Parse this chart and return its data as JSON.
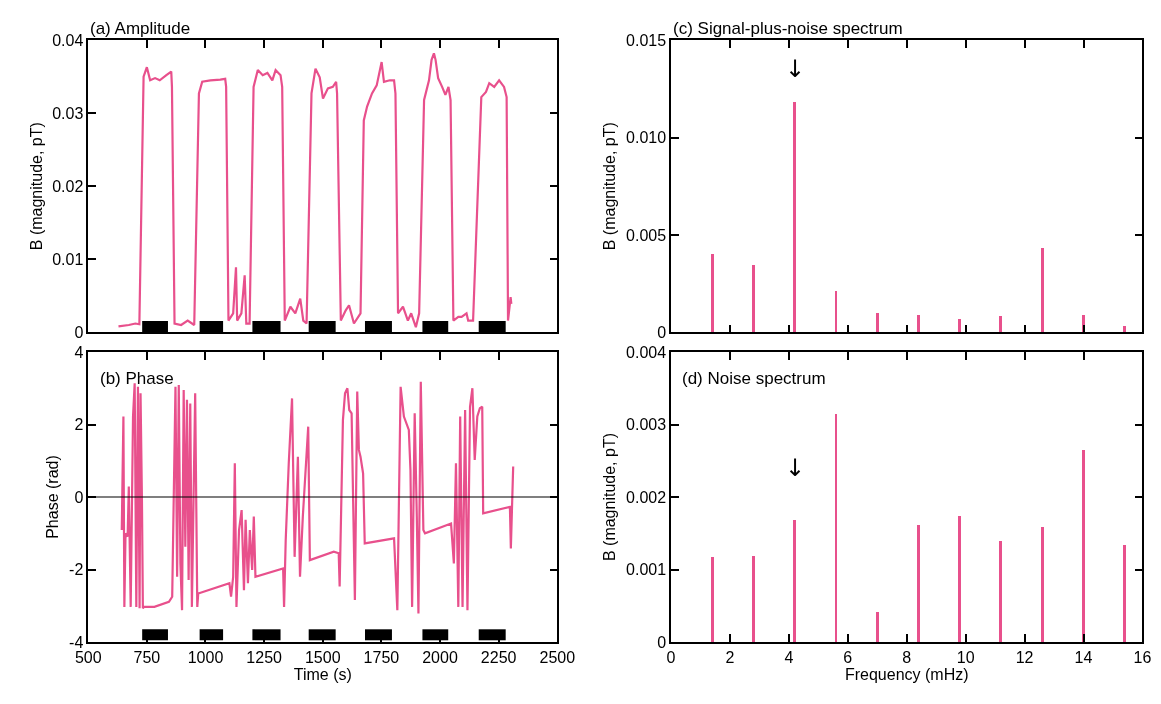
{
  "chart_data": [
    {
      "type": "line",
      "title": "(a) Amplitude",
      "ylabel": "B (magnitude, pT)",
      "tick_labels": "y",
      "marker": "none",
      "line_style": "solid",
      "xlim": [
        500,
        2500
      ],
      "xticks": [
        500,
        750,
        1000,
        1250,
        1500,
        1750,
        2000,
        2250,
        2500
      ],
      "ylim": [
        0,
        0.04
      ],
      "yticks": [
        0,
        0.01,
        0.02,
        0.03,
        0.04
      ],
      "series": [
        {
          "color": "#000000",
          "x": [
            730,
            840,
            null,
            975,
            1075,
            null,
            1200,
            1320,
            null,
            1440,
            1555,
            null,
            1680,
            1795,
            null,
            1925,
            2035,
            null,
            2165,
            2280
          ],
          "values": [
            0.0008,
            0.0008,
            null,
            0.0008,
            0.0008,
            null,
            0.0008,
            0.0008,
            null,
            0.0008,
            0.0008,
            null,
            0.0008,
            0.0008,
            null,
            0.0008,
            0.0008,
            null,
            0.0008,
            0.0008
          ]
        },
        {
          "color": "#e8508c",
          "x": [
            629,
            673,
            701,
            718,
            736,
            750,
            764,
            785,
            805,
            833,
            854,
            857,
            868,
            896,
            924,
            952,
            972,
            986,
            1021,
            1063,
            1084,
            1088,
            1098,
            1118,
            1130,
            1135,
            1153,
            1167,
            1174,
            1188,
            1205,
            1223,
            1244,
            1264,
            1285,
            1299,
            1320,
            1327,
            1338,
            1362,
            1383,
            1404,
            1417,
            1431,
            1452,
            1469,
            1487,
            1501,
            1522,
            1543,
            1557,
            1561,
            1577,
            1598,
            1612,
            1633,
            1661,
            1675,
            1689,
            1710,
            1730,
            1751,
            1761,
            1786,
            1804,
            1810,
            1821,
            1842,
            1863,
            1877,
            1897,
            1911,
            1932,
            1953,
            1964,
            1974,
            1981,
            1992,
            2009,
            2023,
            2036,
            2045,
            2057,
            2078,
            2092,
            2113,
            2120,
            2141,
            2176,
            2196,
            2210,
            2231,
            2252,
            2273,
            2284,
            2290,
            2301,
            2304
          ],
          "values": [
            0.0008,
            0.001,
            0.0012,
            0.0011,
            0.035,
            0.0363,
            0.0345,
            0.0348,
            0.0345,
            0.0352,
            0.0357,
            0.0336,
            0.0012,
            0.001,
            0.0016,
            0.001,
            0.0327,
            0.0343,
            0.0345,
            0.0346,
            0.0347,
            0.0336,
            0.0016,
            0.0026,
            0.0089,
            0.0016,
            0.0026,
            0.0078,
            0.0012,
            0.0012,
            0.0336,
            0.0359,
            0.0352,
            0.0355,
            0.0345,
            0.0359,
            0.0352,
            0.0336,
            0.0016,
            0.0035,
            0.0026,
            0.0046,
            0.0016,
            0.0012,
            0.0327,
            0.0361,
            0.0349,
            0.032,
            0.0334,
            0.0336,
            0.0343,
            0.0327,
            0.0016,
            0.003,
            0.0037,
            0.0012,
            0.0026,
            0.029,
            0.0309,
            0.0327,
            0.0338,
            0.037,
            0.0343,
            0.0345,
            0.0345,
            0.0327,
            0.0026,
            0.0035,
            0.0016,
            0.0026,
            0.0007,
            0.0026,
            0.0318,
            0.0345,
            0.0373,
            0.0382,
            0.0373,
            0.0348,
            0.0336,
            0.0325,
            0.0336,
            0.0318,
            0.0016,
            0.0021,
            0.0021,
            0.0026,
            0.0016,
            0.0016,
            0.0322,
            0.0329,
            0.0341,
            0.0336,
            0.0345,
            0.0336,
            0.0322,
            0.0016,
            0.0048,
            0.0039
          ]
        }
      ]
    },
    {
      "type": "line",
      "title": "(b) Phase",
      "xlabel": "Time (s)",
      "ylabel": "Phase (rad)",
      "marker": "none",
      "line_style": "solid",
      "xlim": [
        500,
        2500
      ],
      "xticks": [
        500,
        750,
        1000,
        1250,
        1500,
        1750,
        2000,
        2250,
        2500
      ],
      "ylim": [
        -4,
        4
      ],
      "yticks": [
        -4,
        -2,
        0,
        2,
        4
      ],
      "ref_lines": [
        {
          "axis": "y",
          "value": 0,
          "color": "#000000"
        }
      ],
      "series": [
        {
          "color": "#000000",
          "x": [
            730,
            840,
            null,
            975,
            1075,
            null,
            1200,
            1320,
            null,
            1440,
            1555,
            null,
            1680,
            1795,
            null,
            1925,
            2035,
            null,
            2165,
            2280
          ],
          "values": [
            -3.8,
            -3.8,
            null,
            -3.8,
            -3.8,
            null,
            -3.8,
            -3.8,
            null,
            -3.8,
            -3.8,
            null,
            -3.8,
            -3.8,
            null,
            -3.8,
            -3.8,
            null,
            -3.8,
            -3.8
          ]
        },
        {
          "color": "#e8508c",
          "x": [
            643,
            650,
            654,
            659,
            668,
            673,
            681,
            691,
            698,
            705,
            712,
            719,
            723,
            729,
            733,
            737,
            782,
            844,
            858,
            872,
            879,
            886,
            893,
            900,
            907,
            914,
            921,
            928,
            935,
            942,
            956,
            965,
            969,
            1102,
            1109,
            1118,
            1125,
            1132,
            1143,
            1154,
            1164,
            1171,
            1181,
            1189,
            1199,
            1206,
            1213,
            1331,
            1335,
            1342,
            1355,
            1369,
            1380,
            1394,
            1403,
            1415,
            1438,
            1445,
            1547,
            1568,
            1572,
            1586,
            1595,
            1605,
            1613,
            1623,
            1637,
            1647,
            1654,
            1661,
            1672,
            1679,
            1804,
            1818,
            1832,
            1846,
            1867,
            1874,
            1881,
            1892,
            1901,
            1908,
            1918,
            1929,
            1936,
            2047,
            2059,
            2068,
            2078,
            2086,
            2096,
            2107,
            2117,
            2128,
            2138,
            2148,
            2159,
            2170,
            2180,
            2184,
            2298,
            2302,
            2312
          ],
          "values": [
            -0.91,
            2.22,
            -3.03,
            -1.0,
            -1.09,
            0.29,
            -3.03,
            2.22,
            3.14,
            -3.03,
            3.04,
            -3.07,
            2.86,
            -0.08,
            -3.07,
            -3.03,
            -3.03,
            -2.89,
            -2.75,
            3.04,
            -2.2,
            3.09,
            -1.83,
            -3.12,
            2.95,
            -1.37,
            2.68,
            -2.29,
            2.58,
            -3.03,
            2.86,
            -3.03,
            -2.66,
            -2.38,
            -2.75,
            -2.2,
            0.93,
            -3.03,
            -0.91,
            -0.36,
            -2.57,
            -0.63,
            -2.38,
            -0.91,
            -2.01,
            -0.54,
            -2.2,
            -1.97,
            -3.03,
            -1.19,
            0.93,
            2.72,
            -1.65,
            1.11,
            -2.2,
            -0.54,
            1.94,
            -1.74,
            -1.51,
            -1.55,
            -2.47,
            2.12,
            2.86,
            3.0,
            2.4,
            2.31,
            -2.84,
            2.91,
            1.3,
            1.11,
            0.65,
            -1.28,
            -1.14,
            -3.12,
            3.04,
            2.22,
            1.85,
            0.74,
            -3.03,
            2.31,
            -0.54,
            -3.21,
            3.18,
            -0.91,
            -1.0,
            -0.73,
            -1.83,
            0.93,
            -3.03,
            2.22,
            -3.03,
            2.4,
            -3.12,
            2.49,
            3.0,
            1.02,
            2.22,
            2.45,
            2.49,
            -0.45,
            -0.27,
            -1.42,
            0.84
          ]
        }
      ]
    },
    {
      "type": "bar",
      "title": "(c) Signal-plus-noise spectrum",
      "ylabel": "B (magnitude, pT)",
      "tick_labels": "y",
      "xlim": [
        0,
        16
      ],
      "xticks": [
        0,
        2,
        4,
        6,
        8,
        10,
        12,
        14,
        16
      ],
      "ylim": [
        0,
        0.015
      ],
      "yticks": [
        0,
        0.005,
        {
          "value": 0.01,
          "label": "0.010"
        },
        0.015
      ],
      "annotations": [
        "↓"
      ],
      "x": [
        1.4,
        2.8,
        4.2,
        5.6,
        7.0,
        8.4,
        9.8,
        11.2,
        12.6,
        14.0,
        15.4
      ],
      "series": [
        {
          "color": "#e8508c",
          "values": [
            0.004,
            0.00345,
            0.0118,
            0.0021,
            0.001,
            0.0009,
            0.0007,
            0.00085,
            0.0043,
            0.0009,
            0.0003
          ]
        }
      ]
    },
    {
      "type": "bar",
      "title": "(d) Noise spectrum",
      "xlabel": "Frequency (mHz)",
      "ylabel": "B (magnitude, pT)",
      "xlim": [
        0,
        16
      ],
      "xticks": [
        0,
        2,
        4,
        6,
        8,
        10,
        12,
        14,
        16
      ],
      "ylim": [
        0,
        0.004
      ],
      "yticks": [
        0,
        0.001,
        0.002,
        0.003,
        0.004
      ],
      "annotations": [
        "↓"
      ],
      "x": [
        1.4,
        2.8,
        4.2,
        5.6,
        7.0,
        8.4,
        9.8,
        11.2,
        12.6,
        14.0,
        15.4
      ],
      "series": [
        {
          "color": "#e8508c",
          "values": [
            0.00117,
            0.00119,
            0.00169,
            0.00314,
            0.00042,
            0.00161,
            0.00174,
            0.00139,
            0.00158,
            0.00265,
            0.00134
          ]
        }
      ]
    }
  ]
}
